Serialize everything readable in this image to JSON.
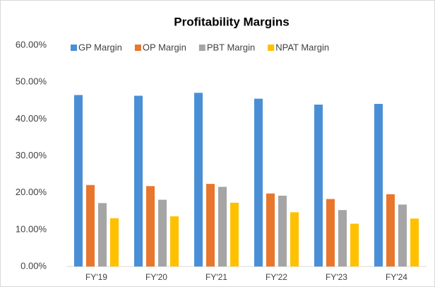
{
  "chart_data": {
    "type": "bar",
    "title": "Profitability Margins",
    "categories": [
      "FY'19",
      "FY'20",
      "FY'21",
      "FY'22",
      "FY'23",
      "FY'24"
    ],
    "series": [
      {
        "name": "GP Margin",
        "color": "#4a8fd6",
        "values": [
          46.5,
          46.3,
          47.1,
          45.5,
          43.9,
          44.1
        ]
      },
      {
        "name": "OP Margin",
        "color": "#e8762c",
        "values": [
          22.1,
          21.8,
          22.4,
          19.8,
          18.3,
          19.6
        ]
      },
      {
        "name": "PBT Margin",
        "color": "#a5a5a5",
        "values": [
          17.2,
          18.1,
          21.6,
          19.2,
          15.3,
          16.8
        ]
      },
      {
        "name": "NPAT Margin",
        "color": "#ffc000",
        "values": [
          13.1,
          13.6,
          17.3,
          14.7,
          11.6,
          13.0
        ]
      }
    ],
    "ylim": [
      0,
      60
    ],
    "yticks": [
      {
        "value": 0,
        "label": "0.00%"
      },
      {
        "value": 10,
        "label": "10.00%"
      },
      {
        "value": 20,
        "label": "20.00%"
      },
      {
        "value": 30,
        "label": "30.00%"
      },
      {
        "value": 40,
        "label": "40.00%"
      },
      {
        "value": 50,
        "label": "50.00%"
      },
      {
        "value": 60,
        "label": "60.00%"
      }
    ],
    "grid": false,
    "legend": "top"
  }
}
